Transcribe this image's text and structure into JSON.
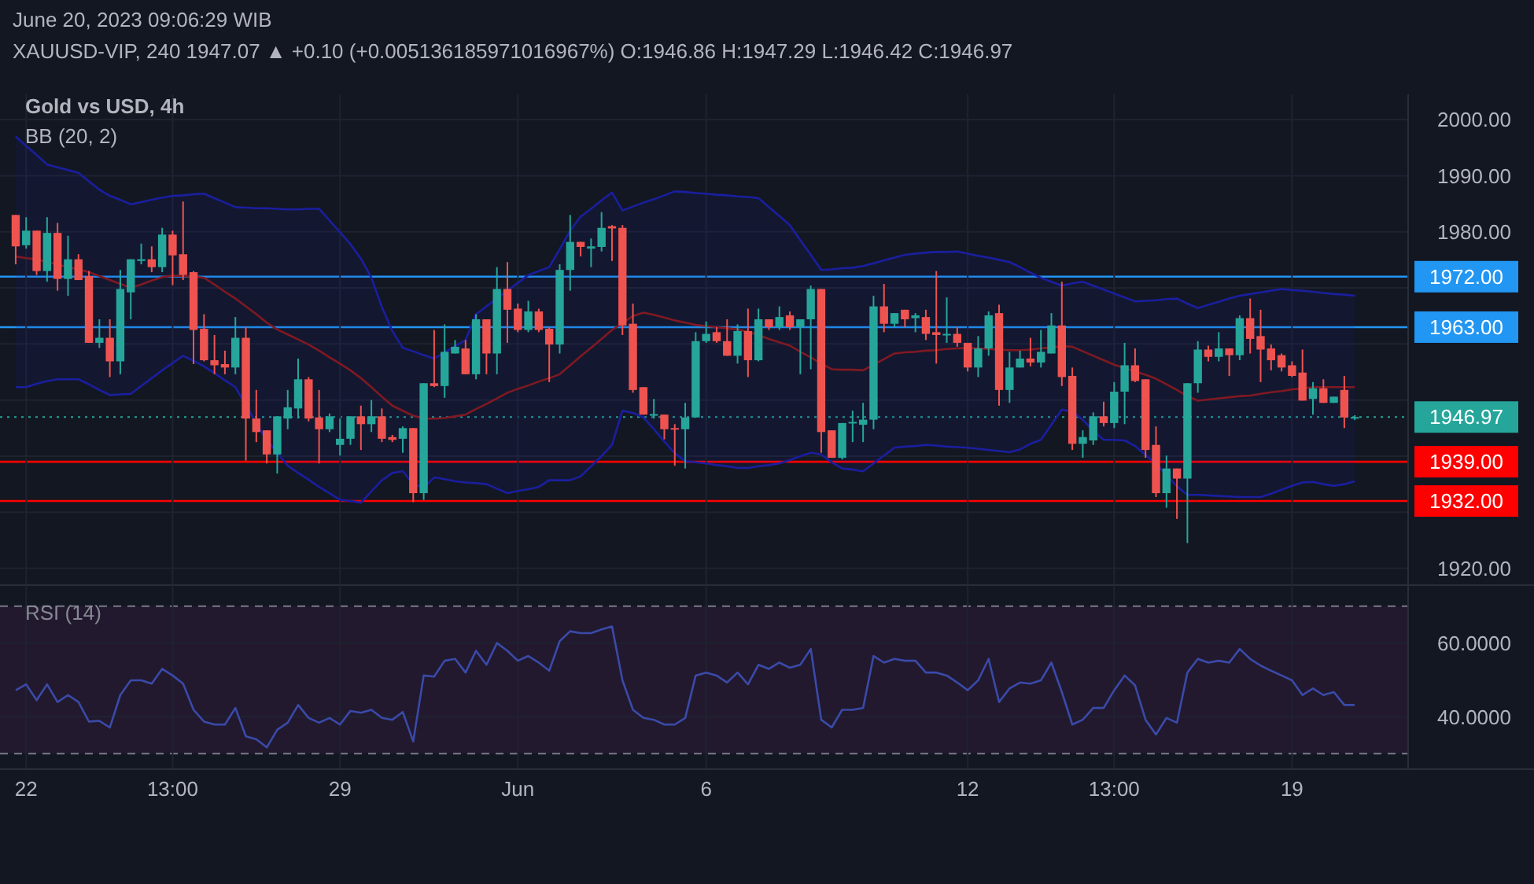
{
  "chart_data": [
    {
      "type": "candlestick",
      "title": "XAUUSD-VIP, 240  1947.07 ▲ +0.10 (+0.005136185971016967%) O:1946.86 H:1947.29 L:1946.42 C:1946.97",
      "annotations": [
        "June 20, 2023 09:06:29 WIB",
        "Gold vs USD, 4h",
        "BB (20, 2)"
      ],
      "categories": [
        null,
        null,
        null,
        null,
        null,
        null,
        null,
        null,
        null,
        null,
        null,
        null,
        null,
        null,
        null,
        null,
        null,
        null,
        null,
        null,
        null,
        null,
        null,
        null,
        null,
        null,
        null,
        null,
        null,
        null,
        null,
        null,
        null,
        null,
        null,
        null,
        null,
        null,
        null,
        null,
        null,
        null,
        null,
        null,
        null,
        null,
        null,
        null,
        null,
        null,
        null,
        null,
        null,
        null,
        null,
        null,
        null,
        null,
        null,
        null,
        null,
        null,
        null,
        null,
        null,
        null,
        null,
        null,
        null,
        null,
        null,
        null,
        null,
        null,
        null,
        null,
        null,
        null,
        null,
        null,
        null,
        null,
        null,
        null,
        null,
        null,
        null,
        null,
        null,
        null,
        null,
        null,
        null,
        null,
        null,
        null,
        null,
        null,
        null,
        null,
        null,
        null,
        null,
        null,
        null,
        null,
        null,
        null,
        null,
        null,
        null,
        null,
        null,
        null,
        null,
        null,
        null,
        null,
        null,
        null,
        null,
        null,
        null,
        null,
        null,
        null,
        null,
        null,
        null
      ],
      "ohlc": [
        [
          1983.0,
          1983.0,
          1974.2,
          1977.4
        ],
        [
          1977.6,
          1982.6,
          1977.0,
          1980.2
        ],
        [
          1980.2,
          1980.2,
          1972.3,
          1973.0
        ],
        [
          1973.0,
          1982.6,
          1971.1,
          1979.8
        ],
        [
          1979.8,
          1981.6,
          1969.5,
          1971.6
        ],
        [
          1971.6,
          1979.3,
          1968.6,
          1975.1
        ],
        [
          1975.1,
          1976.0,
          1971.4,
          1971.4
        ],
        [
          1972.1,
          1973.0,
          1960.2,
          1960.2
        ],
        [
          1960.2,
          1964.4,
          1959.3,
          1961.1
        ],
        [
          1961.1,
          1964.4,
          1954.1,
          1956.9
        ],
        [
          1956.9,
          1973.2,
          1954.6,
          1969.8
        ],
        [
          1969.2,
          1975.1,
          1964.4,
          1975.1
        ],
        [
          1974.8,
          1977.9,
          1974.2,
          1975.1
        ],
        [
          1975.1,
          1977.4,
          1972.8,
          1973.7
        ],
        [
          1973.7,
          1980.7,
          1972.8,
          1979.5
        ],
        [
          1979.5,
          1980.2,
          1970.5,
          1975.8
        ],
        [
          1976.0,
          1985.4,
          1971.4,
          1972.3
        ],
        [
          1972.8,
          1973.0,
          1956.4,
          1962.5
        ],
        [
          1962.7,
          1965.3,
          1956.9,
          1957.1
        ],
        [
          1957.1,
          1961.6,
          1954.6,
          1956.2
        ],
        [
          1956.4,
          1958.8,
          1954.6,
          1955.8
        ],
        [
          1955.8,
          1964.8,
          1954.6,
          1961.1
        ],
        [
          1961.1,
          1963.0,
          1939.2,
          1946.7
        ],
        [
          1946.7,
          1951.8,
          1942.5,
          1944.3
        ],
        [
          1944.6,
          1944.6,
          1938.7,
          1940.3
        ],
        [
          1940.3,
          1947.1,
          1936.9,
          1947.1
        ],
        [
          1946.7,
          1951.8,
          1944.8,
          1948.7
        ],
        [
          1948.5,
          1957.4,
          1946.7,
          1953.7
        ],
        [
          1953.7,
          1954.1,
          1946.2,
          1946.7
        ],
        [
          1946.9,
          1951.8,
          1938.7,
          1944.8
        ],
        [
          1944.8,
          1947.6,
          1944.3,
          1947.1
        ],
        [
          1942.0,
          1946.7,
          1940.1,
          1943.1
        ],
        [
          1943.1,
          1947.1,
          1942.0,
          1947.1
        ],
        [
          1947.1,
          1949.0,
          1941.1,
          1945.7
        ],
        [
          1945.7,
          1950.0,
          1944.3,
          1947.1
        ],
        [
          1947.1,
          1948.5,
          1942.5,
          1943.1
        ],
        [
          1943.4,
          1943.8,
          1942.5,
          1942.9
        ],
        [
          1943.1,
          1945.3,
          1940.6,
          1945.0
        ],
        [
          1945.0,
          1945.0,
          1931.8,
          1933.4
        ],
        [
          1933.4,
          1953.0,
          1932.2,
          1953.0
        ],
        [
          1953.0,
          1962.5,
          1952.3,
          1952.5
        ],
        [
          1952.5,
          1963.5,
          1950.4,
          1958.6
        ],
        [
          1958.3,
          1960.7,
          1958.3,
          1959.5
        ],
        [
          1959.2,
          1960.7,
          1954.6,
          1954.6
        ],
        [
          1954.6,
          1965.3,
          1953.7,
          1964.4
        ],
        [
          1964.4,
          1964.4,
          1954.6,
          1958.3
        ],
        [
          1958.3,
          1973.7,
          1954.6,
          1969.8
        ],
        [
          1969.8,
          1974.6,
          1960.2,
          1966.1
        ],
        [
          1966.3,
          1967.2,
          1962.1,
          1962.5
        ],
        [
          1962.5,
          1967.7,
          1962.1,
          1965.8
        ],
        [
          1965.8,
          1966.3,
          1962.1,
          1962.5
        ],
        [
          1962.7,
          1963.0,
          1953.2,
          1959.9
        ],
        [
          1959.9,
          1974.2,
          1958.3,
          1973.2
        ],
        [
          1973.2,
          1983.0,
          1969.5,
          1978.2
        ],
        [
          1978.2,
          1978.2,
          1975.6,
          1977.3
        ],
        [
          1977.0,
          1978.8,
          1973.7,
          1977.4
        ],
        [
          1977.3,
          1983.5,
          1976.5,
          1980.7
        ],
        [
          1981.0,
          1981.2,
          1974.8,
          1980.6
        ],
        [
          1980.7,
          1981.2,
          1961.6,
          1963.3
        ],
        [
          1963.6,
          1967.2,
          1951.3,
          1951.8
        ],
        [
          1952.3,
          1952.3,
          1947.4,
          1947.4
        ],
        [
          1947.2,
          1950.2,
          1946.7,
          1947.5
        ],
        [
          1947.4,
          1947.4,
          1943.0,
          1944.8
        ],
        [
          1945.0,
          1945.7,
          1938.3,
          1944.8
        ],
        [
          1944.8,
          1949.5,
          1937.8,
          1946.9
        ],
        [
          1946.9,
          1962.1,
          1946.9,
          1960.5
        ],
        [
          1960.5,
          1964.0,
          1960.2,
          1961.8
        ],
        [
          1962.1,
          1963.0,
          1960.2,
          1960.5
        ],
        [
          1960.5,
          1964.4,
          1957.9,
          1957.9
        ],
        [
          1957.9,
          1963.5,
          1956.5,
          1962.3
        ],
        [
          1962.3,
          1966.3,
          1954.1,
          1957.1
        ],
        [
          1957.1,
          1966.3,
          1956.9,
          1964.4
        ],
        [
          1964.4,
          1964.4,
          1962.5,
          1963.0
        ],
        [
          1963.0,
          1966.7,
          1962.5,
          1964.8
        ],
        [
          1965.1,
          1965.8,
          1962.5,
          1963.0
        ],
        [
          1963.0,
          1964.4,
          1954.6,
          1964.4
        ],
        [
          1964.4,
          1970.4,
          1955.5,
          1969.8
        ],
        [
          1969.8,
          1969.8,
          1940.6,
          1944.3
        ],
        [
          1944.6,
          1944.6,
          1939.7,
          1939.7
        ],
        [
          1939.7,
          1945.9,
          1939.4,
          1945.9
        ],
        [
          1945.9,
          1948.1,
          1942.5,
          1946.1
        ],
        [
          1945.6,
          1949.5,
          1942.5,
          1946.5
        ],
        [
          1946.5,
          1968.6,
          1944.8,
          1966.7
        ],
        [
          1966.7,
          1970.7,
          1962.1,
          1963.6
        ],
        [
          1963.6,
          1965.5,
          1963.0,
          1965.5
        ],
        [
          1966.1,
          1966.1,
          1963.0,
          1964.4
        ],
        [
          1964.6,
          1965.5,
          1962.1,
          1965.1
        ],
        [
          1964.8,
          1966.1,
          1960.7,
          1961.8
        ],
        [
          1962.1,
          1973.0,
          1956.5,
          1961.6
        ],
        [
          1961.6,
          1968.3,
          1960.2,
          1961.8
        ],
        [
          1961.8,
          1963.0,
          1959.5,
          1960.2
        ],
        [
          1960.2,
          1960.2,
          1955.1,
          1955.8
        ],
        [
          1955.8,
          1961.4,
          1954.1,
          1959.2
        ],
        [
          1959.2,
          1965.8,
          1957.9,
          1965.1
        ],
        [
          1965.5,
          1967.0,
          1949.0,
          1951.8
        ],
        [
          1951.8,
          1958.6,
          1949.5,
          1955.8
        ],
        [
          1955.8,
          1958.8,
          1955.8,
          1957.4
        ],
        [
          1957.4,
          1961.1,
          1956.0,
          1956.7
        ],
        [
          1956.7,
          1962.5,
          1955.8,
          1958.6
        ],
        [
          1958.3,
          1965.5,
          1958.3,
          1963.3
        ],
        [
          1963.3,
          1971.1,
          1952.5,
          1954.1
        ],
        [
          1954.3,
          1955.8,
          1941.1,
          1942.2
        ],
        [
          1942.2,
          1944.6,
          1939.7,
          1943.4
        ],
        [
          1942.8,
          1947.8,
          1942.0,
          1947.1
        ],
        [
          1947.1,
          1949.7,
          1945.3,
          1945.9
        ],
        [
          1945.9,
          1953.2,
          1945.0,
          1951.5
        ],
        [
          1951.5,
          1960.2,
          1945.7,
          1956.2
        ],
        [
          1956.2,
          1959.2,
          1953.2,
          1953.4
        ],
        [
          1953.7,
          1953.7,
          1939.7,
          1941.1
        ],
        [
          1942.0,
          1945.3,
          1932.7,
          1933.4
        ],
        [
          1933.4,
          1940.1,
          1930.8,
          1937.8
        ],
        [
          1937.8,
          1937.8,
          1928.8,
          1936.0
        ],
        [
          1936.0,
          1953.0,
          1924.5,
          1953.0
        ],
        [
          1953.0,
          1960.5,
          1951.3,
          1959.0
        ],
        [
          1959.0,
          1959.7,
          1956.9,
          1957.7
        ],
        [
          1957.7,
          1962.1,
          1956.9,
          1959.2
        ],
        [
          1959.2,
          1959.2,
          1954.3,
          1958.0
        ],
        [
          1958.0,
          1965.1,
          1957.1,
          1964.6
        ],
        [
          1964.6,
          1968.1,
          1958.3,
          1960.9
        ],
        [
          1961.4,
          1966.1,
          1953.2,
          1959.0
        ],
        [
          1959.2,
          1959.9,
          1955.3,
          1957.1
        ],
        [
          1958.0,
          1958.3,
          1955.1,
          1955.8
        ],
        [
          1956.2,
          1956.9,
          1954.1,
          1954.3
        ],
        [
          1954.9,
          1959.0,
          1949.9,
          1949.9
        ],
        [
          1950.2,
          1953.2,
          1947.4,
          1952.1
        ],
        [
          1952.1,
          1953.7,
          1949.5,
          1949.5
        ],
        [
          1949.5,
          1950.6,
          1949.5,
          1950.6
        ],
        [
          1951.8,
          1954.3,
          1945.0,
          1946.9
        ],
        [
          1946.86,
          1947.29,
          1946.42,
          1946.97
        ]
      ],
      "series": [
        {
          "type": "line",
          "color": "#1b1fa0",
          "values": [
            1997,
            1995.3,
            1993.7,
            1992,
            1991.5,
            1991,
            1990.5,
            1989,
            1987.5,
            1986.4,
            1985.7,
            1984.9,
            1985.3,
            1985.7,
            1986.1,
            1986.4,
            1986.5,
            1986.7,
            1986.8,
            1986,
            1985.2,
            1984.4,
            1984.3,
            1984.2,
            1984.2,
            1984.1,
            1984,
            1984,
            1984.1,
            1984.1,
            1982,
            1979.9,
            1977.8,
            1975.2,
            1971.8,
            1966.6,
            1962.3,
            1959.3,
            1958.7,
            1958,
            1957.4,
            1958.5,
            1959.6,
            1960.7,
            1965.3,
            1966.7,
            1968.1,
            1969.5,
            1970.9,
            1972.3,
            1973,
            1973.7,
            1976.9,
            1980.2,
            1982.7,
            1984.1,
            1985.6,
            1987,
            1983.8,
            1984.5,
            1985.2,
            1985.8,
            1986.5,
            1987.2,
            1987.1,
            1986.9,
            1986.8,
            1986.6,
            1986.5,
            1986.3,
            1986.2,
            1986,
            1984.4,
            1982.8,
            1981.2,
            1978.5,
            1975.9,
            1973.2,
            1973.3,
            1973.5,
            1973.6,
            1973.9,
            1974.4,
            1974.9,
            1975.4,
            1975.9,
            1976.1,
            1976.3,
            1976.4,
            1976.4,
            1976.5,
            1976.1,
            1975.7,
            1975.4,
            1975,
            1974.6,
            1973.7,
            1972.7,
            1971.8,
            1971.1,
            1970.4,
            1970.8,
            1971.1,
            1970.4,
            1969.7,
            1969,
            1968.3,
            1967.6,
            1967.7,
            1967.8,
            1968,
            1968.1,
            1967.2,
            1966.4,
            1967,
            1967.5,
            1968.1,
            1968.6,
            1968.9,
            1969.2,
            1969.5,
            1969.8,
            1969.6,
            1969.5,
            1969.3,
            1969.1,
            1968.9,
            1968.8,
            1968.6
          ]
        },
        {
          "type": "line",
          "color": "#1b1fa0",
          "values": [
            1952.3,
            1952.3,
            1952.9,
            1953.4,
            1953.7,
            1953.7,
            1953.7,
            1952.8,
            1951.8,
            1950.9,
            1951,
            1951.1,
            1952.5,
            1953.9,
            1955.3,
            1956.6,
            1957.9,
            1957,
            1956,
            1954.8,
            1953.5,
            1952.3,
            1949.1,
            1945.8,
            1942.9,
            1940.6,
            1938.3,
            1937,
            1935.8,
            1934.5,
            1933.4,
            1932.2,
            1932,
            1931.7,
            1933.7,
            1935.7,
            1937,
            1937.3,
            1935,
            1934.4,
            1936.2,
            1935.9,
            1935.5,
            1935.3,
            1935.2,
            1935,
            1934.2,
            1933.4,
            1933.8,
            1934.1,
            1934.5,
            1935.7,
            1935.7,
            1935.7,
            1936.4,
            1938.2,
            1940,
            1942,
            1948.1,
            1947.7,
            1946.9,
            1944.8,
            1942.6,
            1940.5,
            1939.1,
            1938.9,
            1938.7,
            1938.4,
            1938.2,
            1937.9,
            1937.9,
            1938.2,
            1938.4,
            1938.7,
            1939.3,
            1940,
            1940.6,
            1940.3,
            1938.9,
            1937.8,
            1937.6,
            1937.3,
            1938.7,
            1940.1,
            1941.5,
            1941.7,
            1941.8,
            1942,
            1941.9,
            1941.7,
            1941.6,
            1941.5,
            1941.3,
            1941.1,
            1940.9,
            1940.7,
            1941.2,
            1942.2,
            1942.9,
            1945.6,
            1948.3,
            1947.9,
            1946.5,
            1944.5,
            1942.9,
            1942.9,
            1942.8,
            1941.8,
            1940.2,
            1938.6,
            1936.6,
            1934.6,
            1933.1,
            1933.1,
            1933,
            1932.9,
            1932.8,
            1932.7,
            1932.7,
            1932.7,
            1933.3,
            1934,
            1934.7,
            1935.3,
            1935.4,
            1935,
            1934.7,
            1935,
            1935.5
          ]
        },
        {
          "type": "line",
          "color": "#801922",
          "values": [
            1975.6,
            1975.3,
            1975.1,
            1974.6,
            1974.2,
            1973.7,
            1973.3,
            1972.8,
            1972.1,
            1971.4,
            1970.7,
            1970,
            1970.6,
            1971.3,
            1971.9,
            1972.2,
            1972.1,
            1972,
            1971.8,
            1970.6,
            1969.3,
            1968.1,
            1966.7,
            1965.3,
            1963.8,
            1962.6,
            1961.7,
            1960.8,
            1959.9,
            1958.8,
            1957.6,
            1956.5,
            1955.3,
            1953.9,
            1952.3,
            1950.6,
            1949,
            1948.1,
            1947.2,
            1946.7,
            1946.7,
            1946.8,
            1947.1,
            1947.4,
            1948.4,
            1949.3,
            1950.3,
            1951.3,
            1952,
            1952.6,
            1953.3,
            1953.9,
            1954.6,
            1956.2,
            1957.8,
            1959.3,
            1960.9,
            1962.5,
            1963.7,
            1965,
            1965.6,
            1965.2,
            1964.7,
            1964.2,
            1963.8,
            1963.4,
            1963.2,
            1963,
            1962.8,
            1962.6,
            1962.2,
            1961.6,
            1960.9,
            1960.3,
            1959.7,
            1958.6,
            1957.6,
            1956.5,
            1955.5,
            1955.4,
            1955.4,
            1955.3,
            1956.3,
            1957.3,
            1958.3,
            1958.5,
            1958.6,
            1958.8,
            1958.9,
            1959.1,
            1959.2,
            1959.3,
            1959.2,
            1959.1,
            1959,
            1958.9,
            1958.9,
            1959,
            1959.2,
            1959.4,
            1959.6,
            1959.5,
            1958.7,
            1957.9,
            1957.1,
            1956.3,
            1955.7,
            1955.1,
            1954.5,
            1953.8,
            1952.8,
            1951.8,
            1950.7,
            1949.9,
            1950.1,
            1950.3,
            1950.5,
            1950.7,
            1950.8,
            1951.1,
            1951.4,
            1951.6,
            1951.9,
            1952.1,
            1952.3,
            1952.3,
            1952.3,
            1952.3,
            1952.3
          ],
          "upper": [
            1997,
            1995.3,
            1993.7,
            1992,
            1991.5,
            1991,
            1990.5,
            1989,
            1987.5,
            1986.4,
            1985.7,
            1984.9,
            1985.3,
            1985.7,
            1986.1,
            1986.4,
            1986.5,
            1986.7,
            1986.8,
            1986,
            1985.2,
            1984.4,
            1984.3,
            1984.2,
            1984.2,
            1984.1,
            1984,
            1984,
            1984.1,
            1984.1,
            1982,
            1979.9,
            1977.8,
            1975.2,
            1971.8,
            1966.6,
            1962.3,
            1959.3,
            1958.7,
            1958,
            1957.4,
            1958.5,
            1959.6,
            1960.7,
            1965.3,
            1966.7,
            1968.1,
            1969.5,
            1970.9,
            1972.3,
            1973,
            1973.7,
            1976.9,
            1980.2,
            1982.7,
            1984.1,
            1985.6,
            1987,
            1983.8,
            1984.5,
            1985.2,
            1985.8,
            1986.5,
            1987.2,
            1987.1,
            1986.9,
            1986.8,
            1986.6,
            1986.5,
            1986.3,
            1986.2,
            1986,
            1984.4,
            1982.8,
            1981.2,
            1978.5,
            1975.9,
            1973.2,
            1973.3,
            1973.5,
            1973.6,
            1973.9,
            1974.4,
            1974.9,
            1975.4,
            1975.9,
            1976.1,
            1976.3,
            1976.4,
            1976.4,
            1976.5,
            1976.1,
            1975.7,
            1975.4,
            1975,
            1974.6,
            1973.7,
            1972.7,
            1971.8,
            1971.1,
            1970.4,
            1970.8,
            1971.1,
            1970.4,
            1969.7,
            1969,
            1968.3,
            1967.6,
            1967.7,
            1967.8,
            1968,
            1968.1,
            1967.2,
            1966.4,
            1967,
            1967.5,
            1968.1,
            1968.6,
            1968.9,
            1969.2,
            1969.5,
            1969.8,
            1969.6,
            1969.5,
            1969.3,
            1969.1,
            1968.9,
            1968.8,
            1968.6
          ],
          "lower": [
            1952.3,
            1952.3,
            1952.9,
            1953.4,
            1953.7,
            1953.7,
            1953.7,
            1952.8,
            1951.8,
            1950.9,
            1951,
            1951.1,
            1952.5,
            1953.9,
            1955.3,
            1956.6,
            1957.9,
            1957,
            1956,
            1954.8,
            1953.5,
            1952.3,
            1949.1,
            1945.8,
            1942.9,
            1940.6,
            1938.3,
            1937,
            1935.8,
            1934.5,
            1933.4,
            1932.2,
            1932,
            1931.7,
            1933.7,
            1935.7,
            1937,
            1937.3,
            1935,
            1934.4,
            1936.2,
            1935.9,
            1935.5,
            1935.3,
            1935.2,
            1935,
            1934.2,
            1933.4,
            1933.8,
            1934.1,
            1934.5,
            1935.7,
            1935.7,
            1935.7,
            1936.4,
            1938.2,
            1940,
            1942,
            1948.1,
            1947.7,
            1946.9,
            1944.8,
            1942.6,
            1940.5,
            1939.1,
            1938.9,
            1938.7,
            1938.4,
            1938.2,
            1937.9,
            1937.9,
            1938.2,
            1938.4,
            1938.7,
            1939.3,
            1940,
            1940.6,
            1940.3,
            1938.9,
            1937.8,
            1937.6,
            1937.3,
            1938.7,
            1940.1,
            1941.5,
            1941.7,
            1941.8,
            1942,
            1941.9,
            1941.7,
            1941.6,
            1941.5,
            1941.3,
            1941.1,
            1940.9,
            1940.7,
            1941.2,
            1942.2,
            1942.9,
            1945.6,
            1948.3,
            1947.9,
            1946.5,
            1944.5,
            1942.9,
            1942.9,
            1942.8,
            1941.8,
            1940.2,
            1938.6,
            1936.6,
            1934.6,
            1933.1,
            1933.1,
            1933,
            1932.9,
            1932.8,
            1932.7,
            1932.7,
            1932.7,
            1933.3,
            1934,
            1934.7,
            1935.3,
            1935.4,
            1935,
            1934.7,
            1935,
            1935.5
          ]
        }
      ],
      "ylim": [
        1917,
        2004.5
      ],
      "yticks": [
        {
          "value": 1920,
          "label": "1920.00"
        },
        {
          "value": 1930,
          "label": null
        },
        {
          "value": 1940,
          "label": null
        },
        {
          "value": 1950,
          "label": null
        },
        {
          "value": 1960,
          "label": null
        },
        {
          "value": 1970,
          "label": null
        },
        {
          "value": 1980,
          "label": "1980.00"
        },
        {
          "value": 1990,
          "label": "1990.00"
        },
        {
          "value": 2000,
          "label": "2000.00"
        }
      ],
      "ref_lines": [
        {
          "axis": "y",
          "value": 1972,
          "label": "1972.00",
          "color": "#2196f3"
        },
        {
          "axis": "y",
          "value": 1963,
          "label": "1963.00",
          "color": "#2196f3"
        },
        {
          "axis": "y",
          "value": 1946.97,
          "label": "1946.97",
          "color": "#26a69a",
          "line_style": "dotted"
        },
        {
          "axis": "y",
          "value": 1939,
          "label": "1939.00",
          "color": "#ff0000"
        },
        {
          "axis": "y",
          "value": 1932,
          "label": "1932.00",
          "color": "#ff0000"
        }
      ],
      "grid": true,
      "tick_labels": "y"
    },
    {
      "type": "line",
      "title": "RSI (14)",
      "categories": [
        null,
        "22",
        null,
        null,
        null,
        null,
        null,
        null,
        null,
        null,
        null,
        null,
        null,
        null,
        null,
        "13:00",
        null,
        null,
        null,
        null,
        null,
        null,
        null,
        null,
        null,
        null,
        null,
        null,
        null,
        null,
        null,
        "29",
        null,
        null,
        null,
        null,
        null,
        null,
        null,
        null,
        null,
        null,
        null,
        null,
        null,
        null,
        null,
        null,
        "Jun",
        null,
        null,
        null,
        null,
        null,
        null,
        null,
        null,
        null,
        null,
        null,
        null,
        null,
        null,
        null,
        null,
        null,
        "6",
        null,
        null,
        null,
        null,
        null,
        null,
        null,
        null,
        null,
        null,
        null,
        null,
        null,
        null,
        null,
        null,
        null,
        null,
        null,
        null,
        null,
        null,
        null,
        null,
        "12",
        null,
        null,
        null,
        null,
        null,
        null,
        null,
        null,
        null,
        null,
        null,
        null,
        null,
        "13:00",
        null,
        null,
        null,
        null,
        null,
        null,
        null,
        null,
        null,
        null,
        null,
        null,
        null,
        null,
        null,
        null,
        "19",
        null,
        null,
        null,
        null,
        null,
        null
      ],
      "series": [
        {
          "color": "#3a4aa8",
          "values": [
            47.2,
            48.8,
            44.5,
            48.8,
            44,
            45.9,
            44,
            38.7,
            38.9,
            37.1,
            45.9,
            49.9,
            49.9,
            49,
            53,
            51.2,
            49,
            41.9,
            38.7,
            37.9,
            37.9,
            42.4,
            34.7,
            33.9,
            31.7,
            36.5,
            38.4,
            43.2,
            39.7,
            38.4,
            39.7,
            37.9,
            41.6,
            41.1,
            41.9,
            39.7,
            39.2,
            41.3,
            33.3,
            51.2,
            50.9,
            55.2,
            55.7,
            52,
            57.9,
            54.1,
            60,
            57.9,
            55.2,
            56.5,
            54.7,
            52.5,
            60.5,
            63.2,
            62.7,
            62.7,
            63.7,
            64.5,
            49.9,
            41.9,
            39.7,
            39.2,
            37.9,
            37.9,
            39.7,
            51.2,
            52,
            51.2,
            49.3,
            52,
            48.8,
            54.1,
            53,
            54.7,
            53.3,
            54.1,
            58.4,
            39.2,
            37.1,
            41.9,
            41.9,
            42.4,
            56.5,
            54.7,
            55.7,
            55.2,
            55.2,
            52,
            52,
            51.2,
            49.3,
            47.2,
            49.9,
            55.7,
            44,
            47.7,
            49.3,
            49,
            49.9,
            54.7,
            46.7,
            37.9,
            39.2,
            42.4,
            42.4,
            47.2,
            51.2,
            48.5,
            39.2,
            35.2,
            39.7,
            38.4,
            52,
            55.7,
            54.7,
            55.2,
            54.7,
            58.4,
            55.7,
            53.9,
            52.5,
            51.2,
            49.9,
            45.9,
            47.7,
            45.9,
            46.7,
            43.2,
            43.2
          ]
        }
      ],
      "ylim": [
        25.8,
        75.7
      ],
      "yticks": [
        {
          "value": 40,
          "label": "40.0000"
        },
        {
          "value": 60,
          "label": "60.0000"
        }
      ],
      "ref_lines": [
        {
          "axis": "y",
          "value": 70,
          "color": "#787b86",
          "line_style": "dashed"
        },
        {
          "axis": "y",
          "value": 30,
          "color": "#787b86",
          "line_style": "dashed"
        }
      ],
      "bands": [
        {
          "axis": "y",
          "from": 30,
          "to": 70,
          "color": "#22192f"
        }
      ],
      "grid": true
    }
  ]
}
